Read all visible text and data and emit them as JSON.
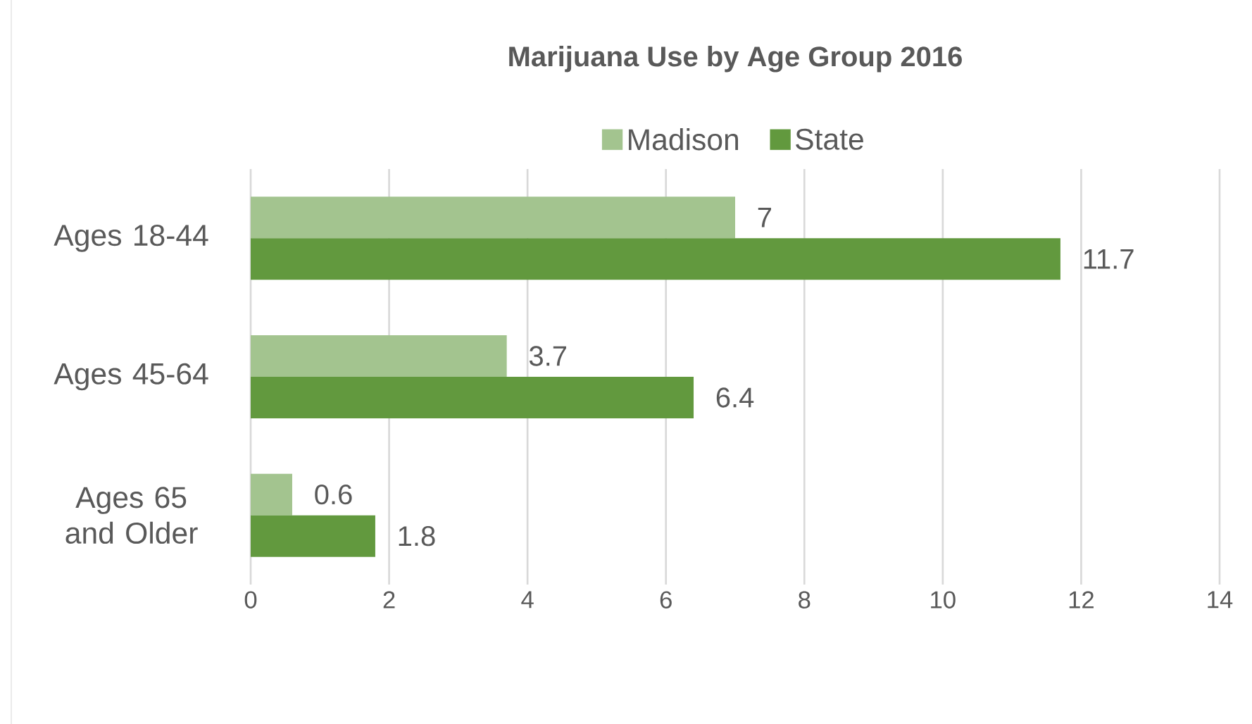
{
  "chart_data": {
    "type": "bar",
    "orientation": "horizontal",
    "title": "Marijuana Use by Age Group 2016",
    "categories": [
      "Ages 18-44",
      "Ages 45-64",
      "Ages 65 and Older"
    ],
    "series": [
      {
        "name": "Madison",
        "color": "#a3c48f",
        "values": [
          7,
          3.7,
          0.6
        ]
      },
      {
        "name": "State",
        "color": "#62993e",
        "values": [
          11.7,
          6.4,
          1.8
        ]
      }
    ],
    "xlim": [
      0,
      14
    ],
    "xticks": [
      0,
      2,
      4,
      6,
      8,
      10,
      12,
      14
    ],
    "grid": "x",
    "legend": "top",
    "data_labels": true
  }
}
